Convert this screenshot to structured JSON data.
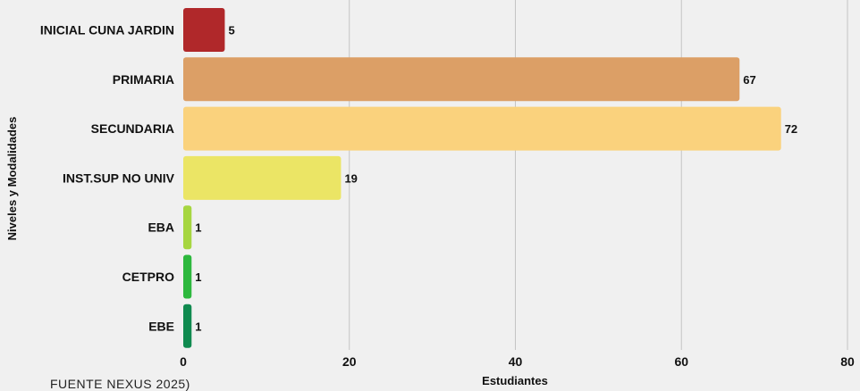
{
  "chart_data": {
    "type": "bar",
    "orientation": "horizontal",
    "categories": [
      "INICIAL CUNA JARDIN",
      "PRIMARIA",
      "SECUNDARIA",
      "INST.SUP NO UNIV",
      "EBA",
      "CETPRO",
      "EBE"
    ],
    "values": [
      5,
      67,
      72,
      19,
      1,
      1,
      1
    ],
    "colors": [
      "#b0282a",
      "#dc9f66",
      "#fad27d",
      "#ebe565",
      "#a6d640",
      "#2db83d",
      "#0f8a4f"
    ],
    "xlabel": "Estudiantes",
    "ylabel": "Niveles y Modalidades",
    "xlim": [
      0,
      80
    ],
    "xticks": [
      0,
      20,
      40,
      60,
      80
    ],
    "grid": "vertical"
  },
  "source_note": "FUENTE NEXUS 2025)"
}
